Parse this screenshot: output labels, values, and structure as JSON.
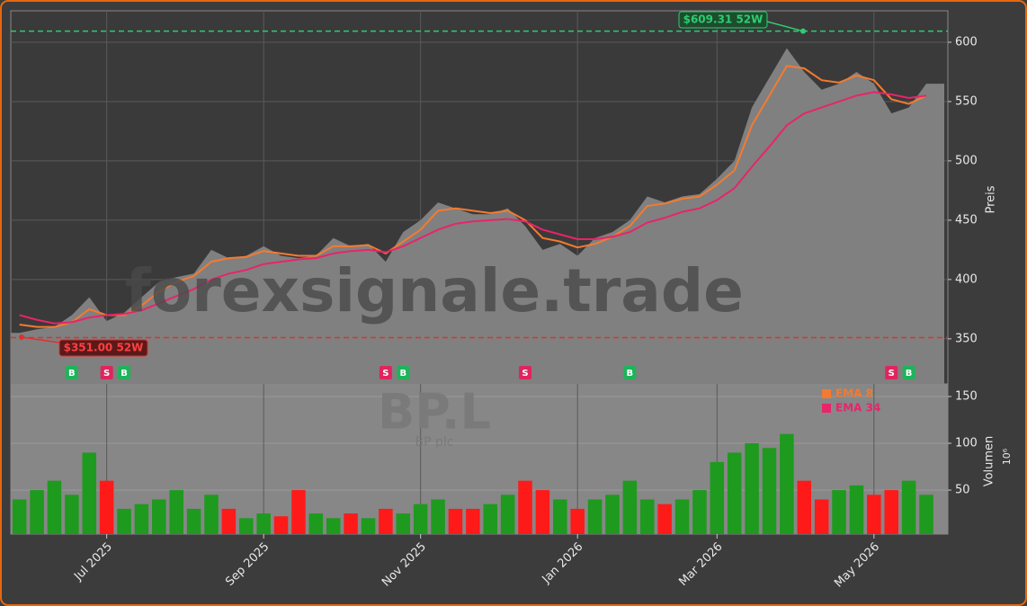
{
  "chart_data": {
    "type": "stock",
    "watermark": "forexsignale.trade",
    "symbol": "BP.L",
    "company": "BP plc",
    "y_label": "Preis",
    "y2_label": "Volumen",
    "y2_unit": "10⁶",
    "categories": [
      null,
      null,
      null,
      null,
      null,
      "Jul 2025",
      null,
      null,
      null,
      null,
      null,
      null,
      null,
      null,
      "Sep 2025",
      null,
      null,
      null,
      null,
      null,
      null,
      null,
      null,
      "Nov 2025",
      null,
      null,
      null,
      null,
      null,
      null,
      null,
      null,
      "Jan 2026",
      null,
      null,
      null,
      null,
      null,
      null,
      null,
      "Mar 2026",
      null,
      null,
      null,
      null,
      null,
      null,
      null,
      null,
      "May 2026",
      null,
      null,
      null
    ],
    "close": [
      355,
      358,
      360,
      370,
      385,
      365,
      372,
      385,
      398,
      402,
      405,
      425,
      418,
      420,
      428,
      420,
      418,
      420,
      435,
      428,
      430,
      415,
      440,
      450,
      465,
      460,
      455,
      455,
      460,
      445,
      425,
      430,
      420,
      435,
      440,
      450,
      470,
      465,
      470,
      472,
      485,
      500,
      545,
      570,
      595,
      575,
      560,
      565,
      575,
      565,
      540,
      545,
      565
    ],
    "close_color": "#808080",
    "series": [
      {
        "name": "EMA 8",
        "color": "#f47a30",
        "values": [
          362,
          360,
          360,
          364,
          375,
          370,
          370,
          378,
          390,
          398,
          403,
          415,
          418,
          419,
          424,
          422,
          420,
          420,
          428,
          428,
          429,
          422,
          432,
          442,
          458,
          460,
          458,
          456,
          458,
          450,
          435,
          432,
          427,
          430,
          436,
          445,
          462,
          464,
          468,
          470,
          480,
          492,
          530,
          555,
          580,
          578,
          568,
          566,
          572,
          568,
          552,
          548,
          555
        ]
      },
      {
        "name": "EMA 34",
        "color": "#e8246a",
        "values": [
          370,
          366,
          363,
          364,
          368,
          370,
          371,
          374,
          380,
          386,
          392,
          400,
          405,
          408,
          413,
          415,
          417,
          418,
          422,
          424,
          425,
          423,
          428,
          435,
          442,
          447,
          449,
          450,
          451,
          449,
          442,
          438,
          434,
          434,
          436,
          440,
          448,
          452,
          457,
          460,
          467,
          477,
          495,
          512,
          530,
          540,
          545,
          550,
          555,
          558,
          556,
          553,
          555
        ]
      }
    ],
    "volume": [
      40,
      50,
      60,
      45,
      90,
      60,
      30,
      35,
      40,
      50,
      30,
      45,
      30,
      20,
      25,
      22,
      50,
      25,
      20,
      25,
      20,
      30,
      25,
      35,
      40,
      30,
      30,
      35,
      45,
      60,
      50,
      40,
      30,
      40,
      45,
      60,
      40,
      35,
      40,
      50,
      80,
      90,
      100,
      95,
      110,
      60,
      40,
      50,
      55,
      45,
      50,
      60,
      45
    ],
    "volume_colors": [
      "#1e9a1e",
      "#1e9a1e",
      "#1e9a1e",
      "#1e9a1e",
      "#1e9a1e",
      "#ff1a1a",
      "#1e9a1e",
      "#1e9a1e",
      "#1e9a1e",
      "#1e9a1e",
      "#1e9a1e",
      "#1e9a1e",
      "#ff1a1a",
      "#1e9a1e",
      "#1e9a1e",
      "#ff1a1a",
      "#ff1a1a",
      "#1e9a1e",
      "#1e9a1e",
      "#ff1a1a",
      "#1e9a1e",
      "#ff1a1a",
      "#1e9a1e",
      "#1e9a1e",
      "#1e9a1e",
      "#ff1a1a",
      "#ff1a1a",
      "#1e9a1e",
      "#1e9a1e",
      "#ff1a1a",
      "#ff1a1a",
      "#1e9a1e",
      "#ff1a1a",
      "#1e9a1e",
      "#1e9a1e",
      "#1e9a1e",
      "#1e9a1e",
      "#ff1a1a",
      "#1e9a1e",
      "#1e9a1e",
      "#1e9a1e",
      "#1e9a1e",
      "#1e9a1e",
      "#1e9a1e",
      "#1e9a1e",
      "#ff1a1a",
      "#ff1a1a",
      "#1e9a1e",
      "#1e9a1e",
      "#ff1a1a",
      "#ff1a1a",
      "#1e9a1e",
      "#1e9a1e"
    ],
    "signals": [
      null,
      null,
      null,
      "B",
      null,
      "S",
      "B",
      null,
      null,
      null,
      null,
      null,
      null,
      null,
      null,
      null,
      null,
      null,
      null,
      null,
      null,
      "S",
      "B",
      null,
      null,
      null,
      null,
      null,
      null,
      "S",
      null,
      null,
      null,
      null,
      null,
      "B",
      null,
      null,
      null,
      null,
      null,
      null,
      null,
      null,
      null,
      null,
      null,
      null,
      null,
      null,
      "S",
      "B",
      null
    ],
    "high_52w": {
      "value": 609.31,
      "label": "$609.31 52W"
    },
    "low_52w": {
      "value": 351.0,
      "label": "$351.00 52W"
    },
    "ylim": [
      312,
      626.5
    ],
    "yticks": [
      350,
      400,
      450,
      500,
      550,
      600
    ],
    "y2lim": [
      3,
      162.5
    ],
    "y2ticks": [
      50,
      100,
      150
    ],
    "grid": true
  }
}
